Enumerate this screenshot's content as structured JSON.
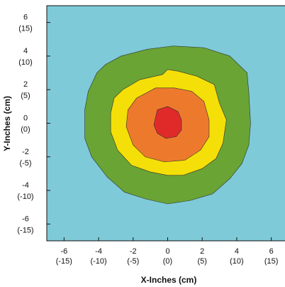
{
  "chart_data": {
    "type": "contour",
    "xlabel": "X-Inches (cm)",
    "ylabel": "Y-Inches (cm)",
    "xlim": [
      -7,
      7
    ],
    "ylim": [
      -7,
      7
    ],
    "x_ticks": [
      {
        "value": -6,
        "line1": "-6",
        "line2": "(-15)"
      },
      {
        "value": -4,
        "line1": "-4",
        "line2": "(-10)"
      },
      {
        "value": -2,
        "line1": "-2",
        "line2": "(-5)"
      },
      {
        "value": 0,
        "line1": "0",
        "line2": "(0)"
      },
      {
        "value": 2,
        "line1": "2",
        "line2": "(5)"
      },
      {
        "value": 4,
        "line1": "4",
        "line2": "(10)"
      },
      {
        "value": 6,
        "line1": "6",
        "line2": "(15)"
      }
    ],
    "y_ticks": [
      {
        "value": 6,
        "line1": "6",
        "line2": "(15)"
      },
      {
        "value": 4,
        "line1": "4",
        "line2": "(10)"
      },
      {
        "value": 2,
        "line1": "2",
        "line2": "(5)"
      },
      {
        "value": 0,
        "line1": "0",
        "line2": "(0)"
      },
      {
        "value": -2,
        "line1": "-2",
        "line2": "(-5)"
      },
      {
        "value": -4,
        "line1": "-4",
        "line2": "(-10)"
      },
      {
        "value": -6,
        "line1": "-6",
        "line2": "(-15)"
      }
    ],
    "background_color": "#7ecad8",
    "contours": [
      {
        "level": 1,
        "color": "#6aa435",
        "points": [
          [
            -2.7,
            4.0
          ],
          [
            -1.2,
            4.4
          ],
          [
            0.3,
            4.6
          ],
          [
            2.1,
            4.5
          ],
          [
            3.6,
            4.0
          ],
          [
            4.6,
            3.0
          ],
          [
            4.7,
            1.8
          ],
          [
            4.8,
            0.0
          ],
          [
            4.7,
            -1.3
          ],
          [
            4.3,
            -2.4
          ],
          [
            3.6,
            -3.3
          ],
          [
            2.6,
            -4.2
          ],
          [
            1.3,
            -4.6
          ],
          [
            0.0,
            -4.8
          ],
          [
            -1.3,
            -4.5
          ],
          [
            -2.5,
            -4.1
          ],
          [
            -3.5,
            -3.2
          ],
          [
            -4.4,
            -2.0
          ],
          [
            -4.8,
            -0.9
          ],
          [
            -4.8,
            0.8
          ],
          [
            -4.6,
            1.9
          ],
          [
            -4.1,
            3.0
          ],
          [
            -3.6,
            3.5
          ]
        ]
      },
      {
        "level": 2,
        "color": "#f5df08",
        "points": [
          [
            -2.6,
            2.0
          ],
          [
            -1.6,
            2.6
          ],
          [
            -0.3,
            2.9
          ],
          [
            0.0,
            3.2
          ],
          [
            0.6,
            3.1
          ],
          [
            1.7,
            2.8
          ],
          [
            2.7,
            2.3
          ],
          [
            3.0,
            1.2
          ],
          [
            3.4,
            0.2
          ],
          [
            3.2,
            -1.2
          ],
          [
            2.8,
            -2.1
          ],
          [
            2.0,
            -2.7
          ],
          [
            0.9,
            -3.1
          ],
          [
            0.0,
            -3.1
          ],
          [
            -1.0,
            -2.9
          ],
          [
            -2.1,
            -2.5
          ],
          [
            -2.9,
            -1.6
          ],
          [
            -3.3,
            -0.5
          ],
          [
            -3.3,
            0.6
          ],
          [
            -3.1,
            1.5
          ]
        ]
      },
      {
        "level": 3,
        "color": "#ed7a2c",
        "points": [
          [
            -1.8,
            1.5
          ],
          [
            -0.7,
            2.1
          ],
          [
            0.4,
            2.1
          ],
          [
            1.4,
            1.9
          ],
          [
            2.1,
            1.3
          ],
          [
            2.4,
            0.2
          ],
          [
            2.4,
            -0.8
          ],
          [
            1.9,
            -1.6
          ],
          [
            1.0,
            -2.2
          ],
          [
            -0.2,
            -2.3
          ],
          [
            -1.3,
            -2.0
          ],
          [
            -2.0,
            -1.3
          ],
          [
            -2.4,
            -0.2
          ],
          [
            -2.3,
            0.8
          ]
        ]
      },
      {
        "level": 4,
        "color": "#e02a2a",
        "points": [
          [
            -0.6,
            0.8
          ],
          [
            0.0,
            1.0
          ],
          [
            0.6,
            0.7
          ],
          [
            0.8,
            0.2
          ],
          [
            0.8,
            -0.4
          ],
          [
            0.5,
            -0.8
          ],
          [
            -0.1,
            -0.9
          ],
          [
            -0.6,
            -0.6
          ],
          [
            -0.8,
            -0.1
          ]
        ]
      }
    ]
  }
}
